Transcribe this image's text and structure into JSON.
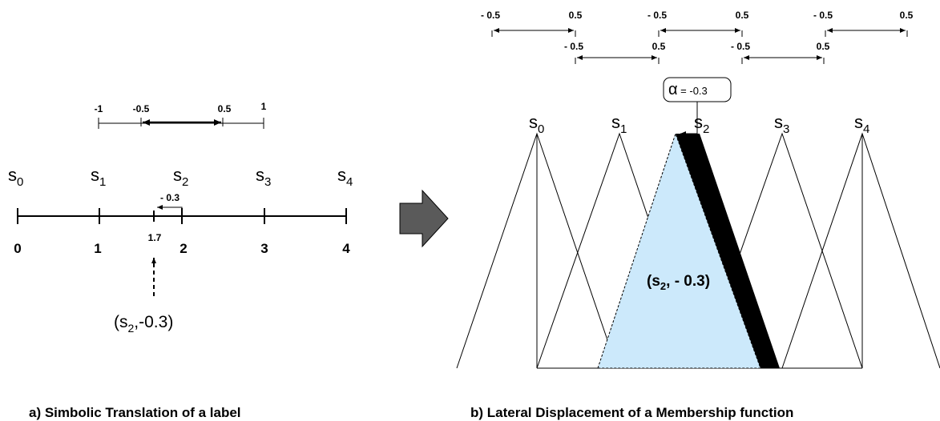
{
  "panel_a": {
    "range_labels": {
      "m1": "-1",
      "mhalf": "-0.5",
      "phalf": "0.5",
      "p1": "1"
    },
    "labels": [
      {
        "s": "s",
        "i": "0"
      },
      {
        "s": "s",
        "i": "1"
      },
      {
        "s": "s",
        "i": "2"
      },
      {
        "s": "s",
        "i": "3"
      },
      {
        "s": "s",
        "i": "4"
      }
    ],
    "ticks": [
      "0",
      "1",
      "2",
      "3",
      "4"
    ],
    "alpha_label": "- 0.3",
    "value": "1.7",
    "result": {
      "open": "(s",
      "sub": "2",
      "rest": ",-0.3)"
    },
    "caption": "a) Simbolic Translation of a label"
  },
  "panel_b": {
    "range_labels": {
      "neg": "- 0.5",
      "pos": "0.5"
    },
    "alpha": {
      "symbol": "α",
      "text": " = -0.3"
    },
    "labels": [
      {
        "s": "s",
        "i": "0"
      },
      {
        "s": "s",
        "i": "1"
      },
      {
        "s": "s",
        "i": "2"
      },
      {
        "s": "s",
        "i": "3"
      },
      {
        "s": "s",
        "i": "4"
      }
    ],
    "result": {
      "open": "(s",
      "sub": "2",
      "rest": ", - 0.3)"
    },
    "caption": "b) Lateral Displacement of a Membership function"
  },
  "colors": {
    "shifted_fill": "#cce9fb",
    "dark_band": "#000000",
    "arrow": "#5a5a5a"
  }
}
